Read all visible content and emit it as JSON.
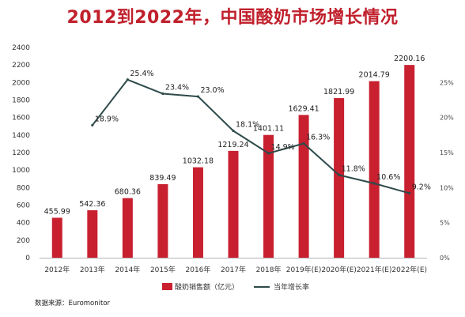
{
  "title": "2012到2022年，中国酸奶市场增长情况",
  "source": "数据来源：Euromonitor",
  "chart_data": {
    "type": "bar",
    "categories": [
      "2012年",
      "2013年",
      "2014年",
      "2015年",
      "2016年",
      "2017年",
      "2018年",
      "2019年(E)",
      "2020年(E)",
      "2021年(E)",
      "2022年(E)"
    ],
    "series": [
      {
        "name": "酸奶销售额（亿元）",
        "type": "bar",
        "axis": "left",
        "values": [
          455.99,
          542.36,
          680.36,
          839.49,
          1032.18,
          1219.24,
          1401.11,
          1629.41,
          1821.99,
          2014.79,
          2200.16
        ],
        "labels": [
          "455.99",
          "542.36",
          "680.36",
          "839.49",
          "1032.18",
          "1219.24",
          "1401.11",
          "1629.41",
          "1821.99",
          "2014.79",
          "2200.16"
        ]
      },
      {
        "name": "当年增长率",
        "type": "line",
        "axis": "right",
        "values": [
          null,
          18.9,
          25.4,
          23.4,
          23.0,
          18.1,
          14.9,
          16.3,
          11.8,
          10.6,
          9.2
        ],
        "labels": [
          null,
          "18.9%",
          "25.4%",
          "23.4%",
          "23.0%",
          "18.1%",
          "14.9%",
          "16.3%",
          "11.8%",
          "10.6%",
          "9.2%"
        ]
      }
    ],
    "ylim": [
      0,
      2400
    ],
    "yticks": [
      "0",
      "200",
      "400",
      "600",
      "800",
      "1000",
      "1200",
      "1400",
      "1600",
      "1800",
      "2000",
      "2200",
      "2400"
    ],
    "y2lim": [
      0,
      30
    ],
    "y2ticks": [
      "0%",
      "5%",
      "10%",
      "15%",
      "20%",
      "25%"
    ],
    "grid": false,
    "legend_position": "bottom",
    "colors": {
      "bar": "#c8202f",
      "line": "#2e4a4a",
      "title": "#c0202c"
    }
  }
}
